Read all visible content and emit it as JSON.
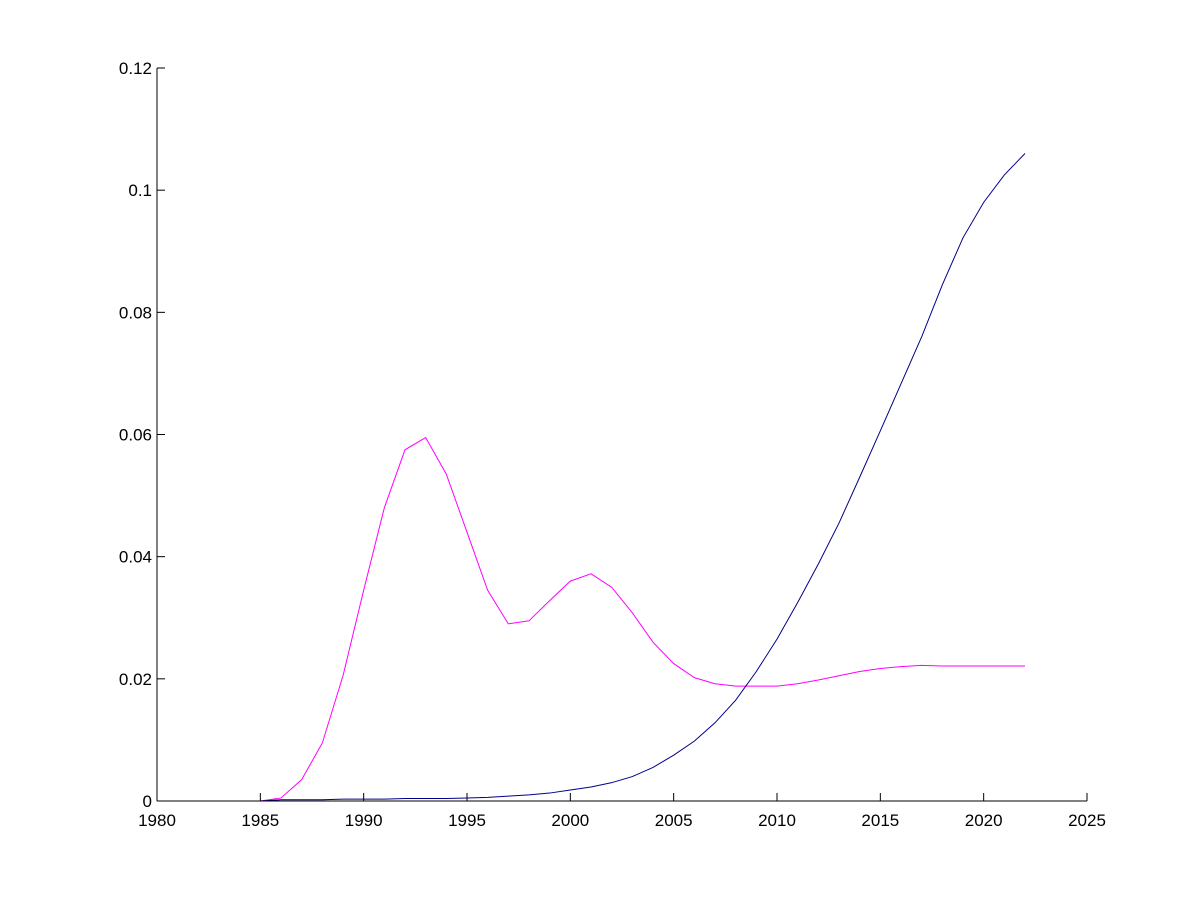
{
  "chart_data": {
    "type": "line",
    "title": "",
    "xlabel": "",
    "ylabel": "",
    "xlim": [
      1980,
      2025
    ],
    "ylim": [
      0,
      0.12
    ],
    "grid": false,
    "x_ticks": [
      {
        "value": 1980,
        "label": "1980"
      },
      {
        "value": 1985,
        "label": "1985"
      },
      {
        "value": 1990,
        "label": "1990"
      },
      {
        "value": 1995,
        "label": "1995"
      },
      {
        "value": 2000,
        "label": "2000"
      },
      {
        "value": 2005,
        "label": "2005"
      },
      {
        "value": 2010,
        "label": "2010"
      },
      {
        "value": 2015,
        "label": "2015"
      },
      {
        "value": 2020,
        "label": "2020"
      },
      {
        "value": 2025,
        "label": "2025"
      }
    ],
    "y_ticks": [
      {
        "value": 0,
        "label": "0"
      },
      {
        "value": 0.02,
        "label": "0.02"
      },
      {
        "value": 0.04,
        "label": "0.04"
      },
      {
        "value": 0.06,
        "label": "0.06"
      },
      {
        "value": 0.08,
        "label": "0.08"
      },
      {
        "value": 0.1,
        "label": "0.1"
      },
      {
        "value": 0.12,
        "label": "0.12"
      }
    ],
    "x": [
      1980,
      1981,
      1982,
      1983,
      1984,
      1985,
      1986,
      1987,
      1988,
      1989,
      1990,
      1991,
      1992,
      1993,
      1994,
      1995,
      1996,
      1997,
      1998,
      1999,
      2000,
      2001,
      2002,
      2003,
      2004,
      2005,
      2006,
      2007,
      2008,
      2009,
      2010,
      2011,
      2012,
      2013,
      2014,
      2015,
      2016,
      2017,
      2018,
      2019,
      2020,
      2021,
      2022
    ],
    "series": [
      {
        "color": "#ff00ff",
        "values": [
          0,
          0,
          0,
          0,
          0,
          0,
          0.0005,
          0.0035,
          0.0095,
          0.0205,
          0.0345,
          0.048,
          0.0575,
          0.0595,
          0.0535,
          0.044,
          0.0345,
          0.029,
          0.0295,
          0.0328,
          0.036,
          0.0372,
          0.035,
          0.0308,
          0.026,
          0.0225,
          0.0202,
          0.0192,
          0.0188,
          0.0188,
          0.0188,
          0.0192,
          0.0198,
          0.0205,
          0.0212,
          0.0217,
          0.022,
          0.0222,
          0.0221,
          0.0221,
          0.0221,
          0.0221,
          0.0221
        ]
      },
      {
        "color": "#00008b",
        "values": [
          0,
          0,
          0,
          0,
          0,
          0,
          0.0002,
          0.0002,
          0.0002,
          0.0003,
          0.0003,
          0.0003,
          0.0004,
          0.0004,
          0.0004,
          0.0005,
          0.0006,
          0.0008,
          0.001,
          0.0013,
          0.0018,
          0.0023,
          0.003,
          0.004,
          0.0055,
          0.0075,
          0.0098,
          0.0128,
          0.0165,
          0.0212,
          0.0265,
          0.0325,
          0.0388,
          0.0455,
          0.053,
          0.0606,
          0.0683,
          0.076,
          0.0845,
          0.0922,
          0.098,
          0.1025,
          0.106
        ]
      }
    ]
  }
}
